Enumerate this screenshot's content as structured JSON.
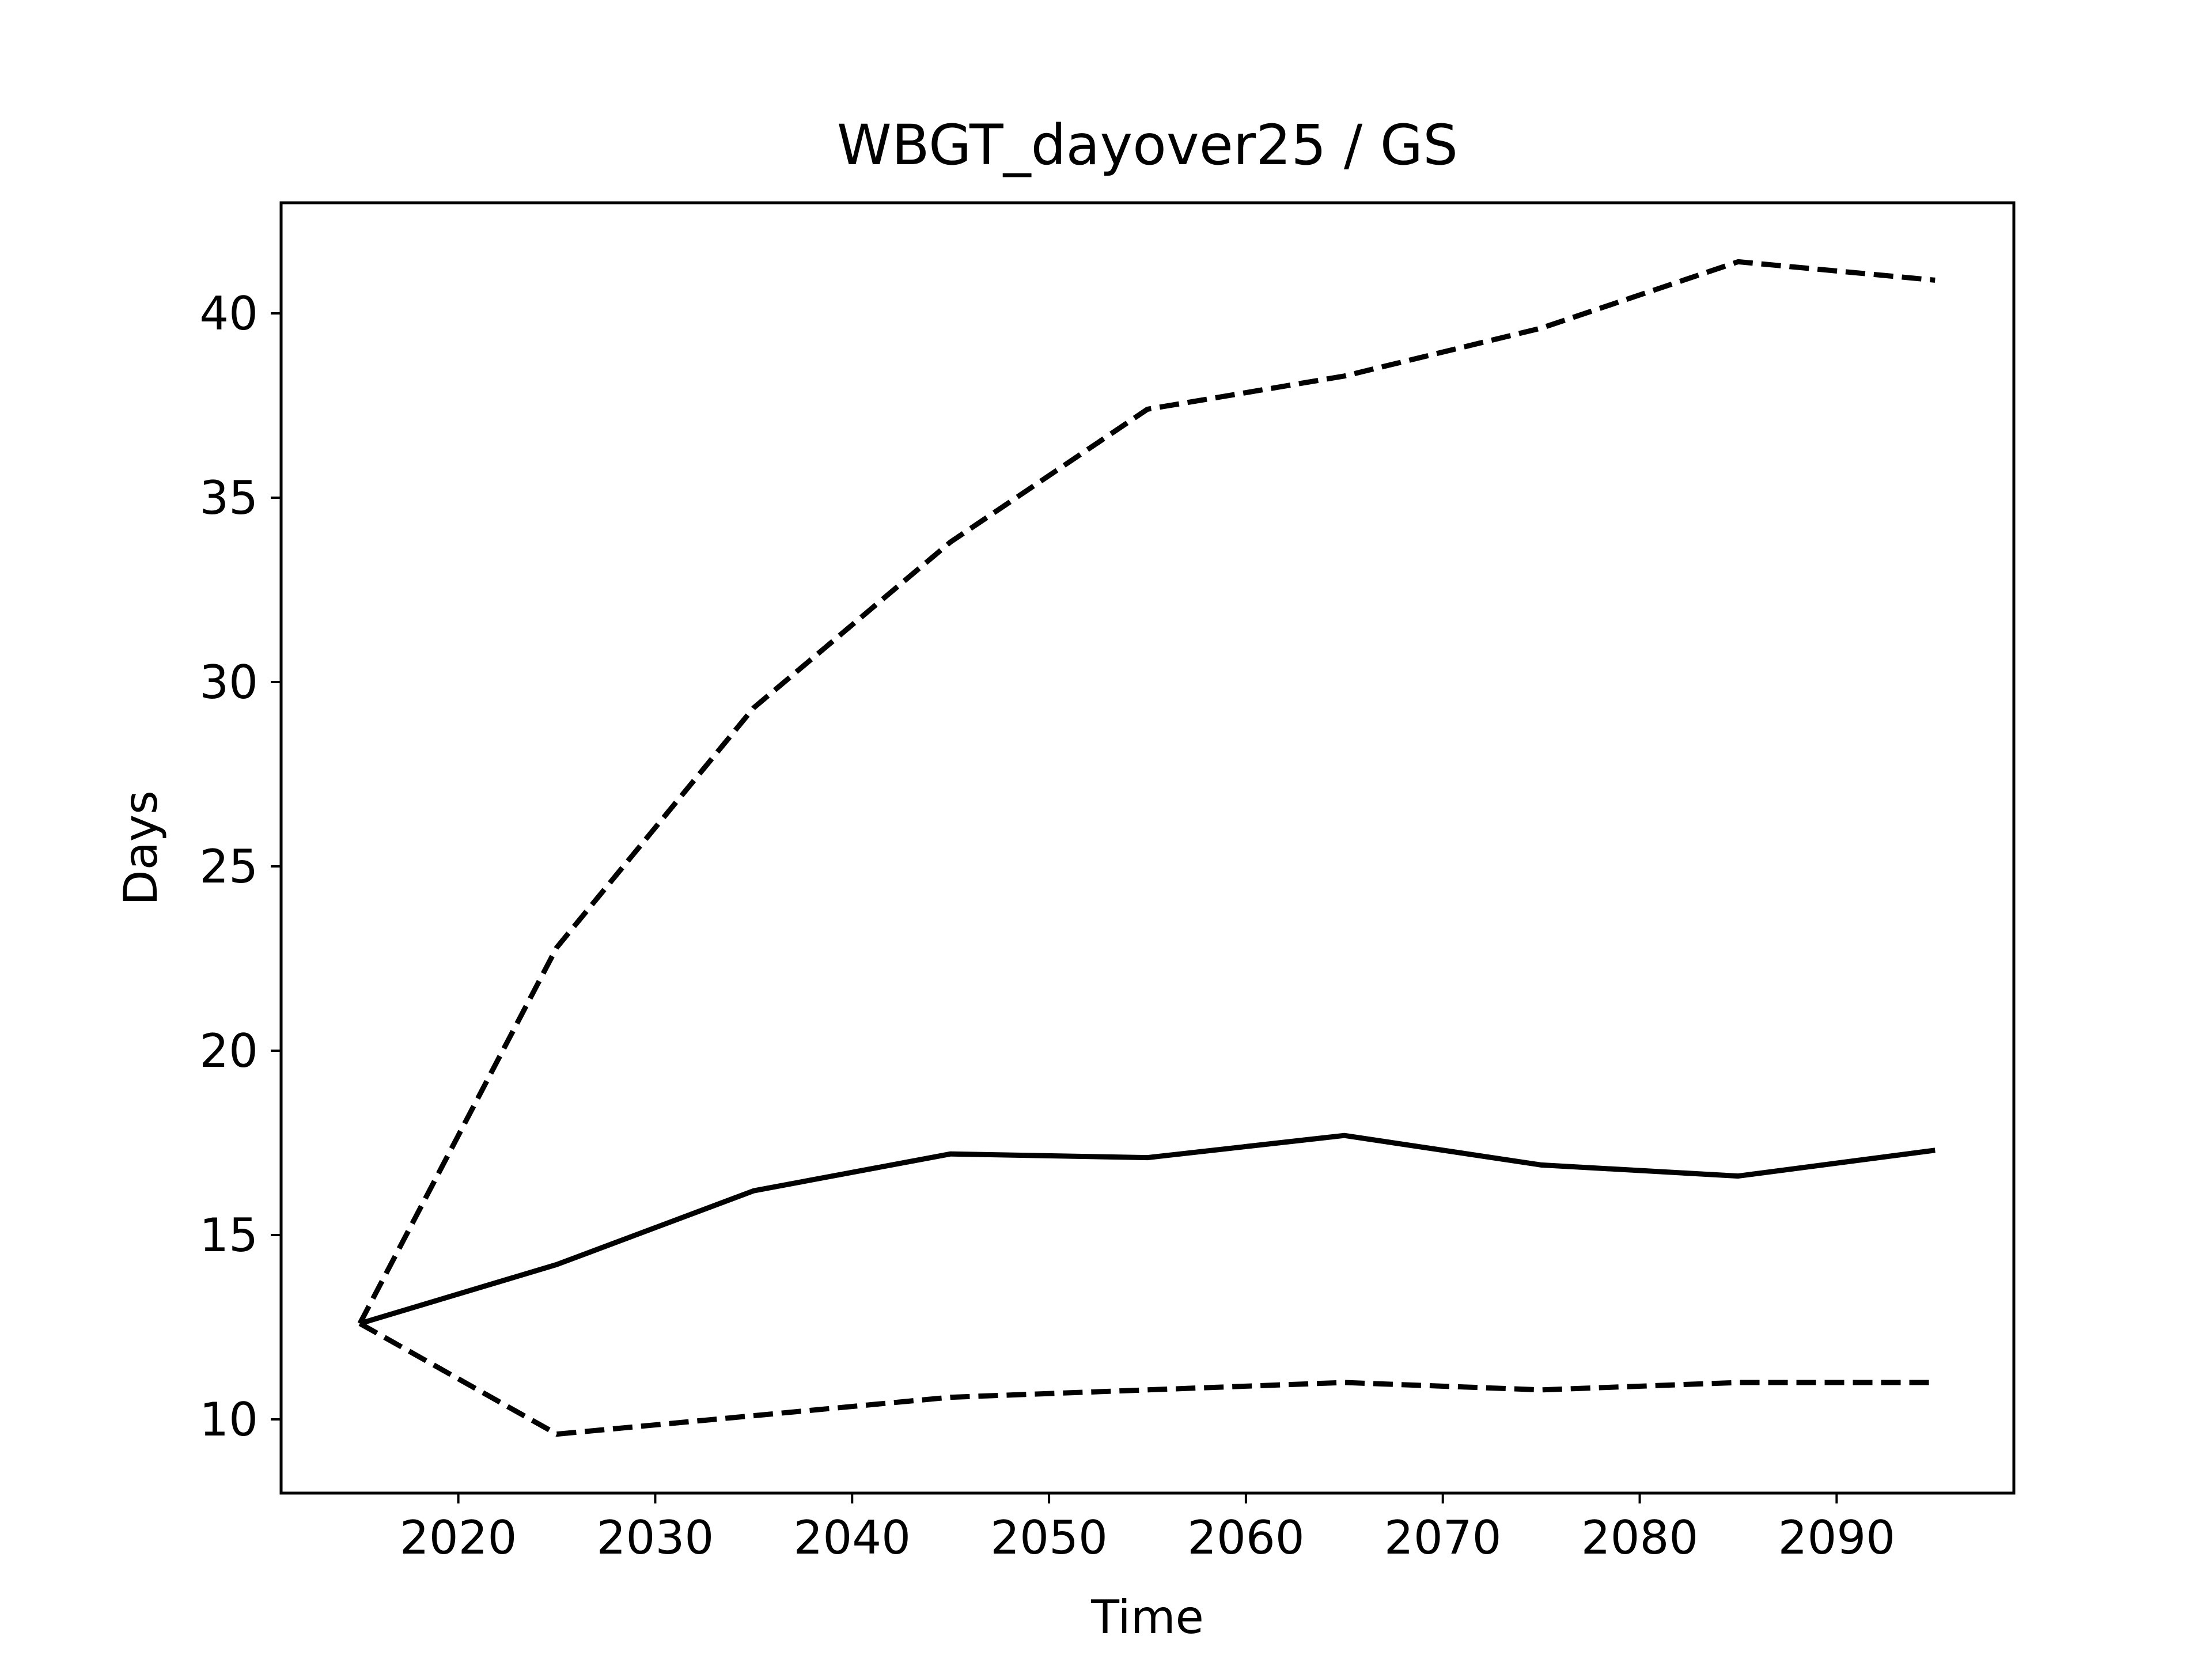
{
  "chart_data": {
    "type": "line",
    "title": "WBGT_dayover25 / GS",
    "xlabel": "Time",
    "ylabel": "Days",
    "xlim": [
      2011,
      2099
    ],
    "ylim": [
      8,
      43
    ],
    "x_ticks": [
      2020,
      2030,
      2040,
      2050,
      2060,
      2070,
      2080,
      2090
    ],
    "y_ticks": [
      10,
      15,
      20,
      25,
      30,
      35,
      40
    ],
    "x_tick_labels": [
      "2020",
      "2030",
      "2040",
      "2050",
      "2060",
      "2070",
      "2080",
      "2090"
    ],
    "y_tick_labels": [
      "10",
      "15",
      "20",
      "25",
      "30",
      "35",
      "40"
    ],
    "grid": false,
    "legend": "none",
    "x": [
      2015,
      2025,
      2035,
      2045,
      2055,
      2065,
      2075,
      2085,
      2095
    ],
    "series": [
      {
        "style": "dashed",
        "color": "#000000",
        "values": [
          12.6,
          22.8,
          29.3,
          33.8,
          37.4,
          38.3,
          39.6,
          41.4,
          40.9
        ]
      },
      {
        "style": "solid",
        "color": "#000000",
        "values": [
          12.6,
          14.2,
          16.2,
          17.2,
          17.1,
          17.7,
          16.9,
          16.6,
          17.3
        ]
      },
      {
        "style": "dashed",
        "color": "#000000",
        "values": [
          12.6,
          9.6,
          10.1,
          10.6,
          10.8,
          11.0,
          10.8,
          11.0,
          11.0
        ]
      }
    ]
  }
}
